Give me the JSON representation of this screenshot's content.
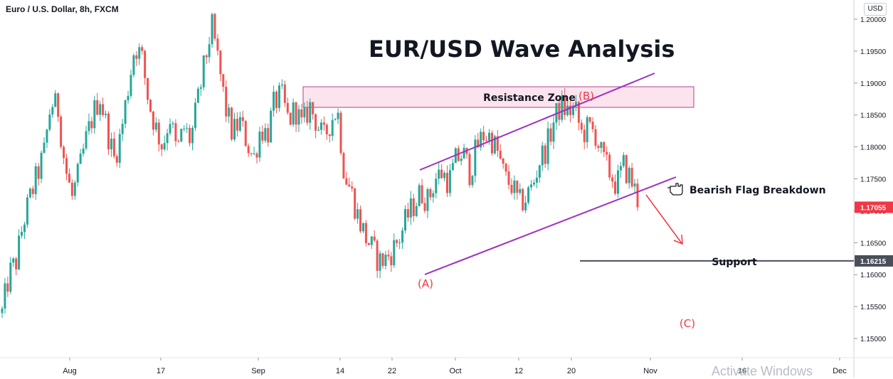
{
  "header": {
    "symbol": "Euro / U.S. Dollar, 8h, FXCM",
    "currency": "USD"
  },
  "chart_data": {
    "type": "candlestick",
    "title": "EUR/USD Wave Analysis",
    "ylim": [
      1.147,
      1.203
    ],
    "y_ticks": [
      "1.20000",
      "1.19500",
      "1.19000",
      "1.18500",
      "1.18000",
      "1.17500",
      "1.17000",
      "1.16500",
      "1.16000",
      "1.15500",
      "1.15000"
    ],
    "x_ticks": [
      "Aug",
      "17",
      "Sep",
      "14",
      "22",
      "Oct",
      "12",
      "20",
      "Nov",
      "16",
      "Dec"
    ],
    "price_labels": [
      {
        "text": "1.17055",
        "value": 1.17055,
        "color": "#f23645"
      },
      {
        "text": "1.16215",
        "value": 1.16215,
        "color": "#4a4e59"
      }
    ],
    "candle_count": 228,
    "candle_high_max": 1.201,
    "candle_low_min": 1.149,
    "close_path": [
      1.154,
      1.16,
      1.162,
      1.168,
      1.172,
      1.1755,
      1.179,
      1.187,
      1.186,
      1.177,
      1.172,
      1.176,
      1.181,
      1.185,
      1.188,
      1.183,
      1.178,
      1.182,
      1.189,
      1.196,
      1.194,
      1.187,
      1.183,
      1.18,
      1.185,
      1.179,
      1.183,
      1.181,
      1.187,
      1.193,
      1.199,
      1.193,
      1.186,
      1.182,
      1.184,
      1.181,
      1.178,
      1.183,
      1.182,
      1.187,
      1.188,
      1.184,
      1.186,
      1.183,
      1.1865,
      1.184,
      1.181,
      1.184,
      1.186,
      1.176,
      1.173,
      1.169,
      1.166,
      1.164,
      1.162,
      1.1625,
      1.164,
      1.166,
      1.169,
      1.171,
      1.173,
      1.1715,
      1.175,
      1.176,
      1.1745,
      1.178,
      1.179,
      1.176,
      1.18,
      1.182,
      1.1815,
      1.179,
      1.175,
      1.174,
      1.171,
      1.172,
      1.174,
      1.178,
      1.18,
      1.184,
      1.1865,
      1.1855,
      1.186,
      1.182,
      1.183,
      1.182,
      1.178,
      1.176,
      1.174,
      1.177,
      1.175,
      1.172
    ],
    "series": [],
    "annotations": {
      "resistance_label": "Resistance Zone",
      "flag_label": "Bearish Flag Breakdown",
      "support_label": "Support",
      "wave_a": "(A)",
      "wave_b": "(B)",
      "wave_c": "(C)",
      "hand_icon": "pointing-hand-icon"
    },
    "colors": {
      "up": "#26a69a",
      "down": "#ef5350",
      "channel": "#a02fc0",
      "resistance_border": "#b23f93",
      "resistance_fill": "#fce4ee",
      "support": "#4a4e59",
      "arrow": "#f23645",
      "wave_label": "#f23645"
    },
    "grid": false
  },
  "watermark": "Activate Windows"
}
